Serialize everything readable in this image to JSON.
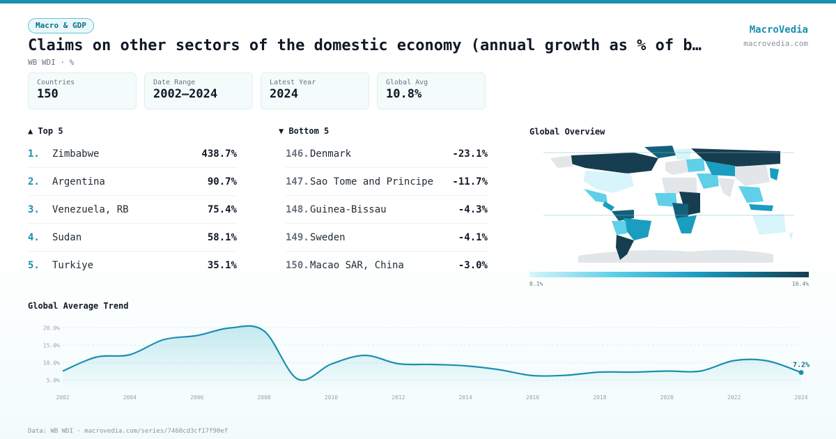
{
  "header": {
    "badge": "Macro & GDP",
    "title": "Claims on other sectors of the domestic economy (annual growth as % of b…",
    "subtitle": "WB WDI · %",
    "brand_name": "MacroVedia",
    "brand_url": "macrovedia.com"
  },
  "stats": [
    {
      "label": "Countries",
      "value": "150"
    },
    {
      "label": "Date Range",
      "value": "2002–2024"
    },
    {
      "label": "Latest Year",
      "value": "2024"
    },
    {
      "label": "Global Avg",
      "value": "10.8%"
    }
  ],
  "top5": {
    "heading": "▲ Top 5",
    "items": [
      {
        "rank": "1.",
        "name": "Zimbabwe",
        "value": "438.7%"
      },
      {
        "rank": "2.",
        "name": "Argentina",
        "value": "90.7%"
      },
      {
        "rank": "3.",
        "name": "Venezuela, RB",
        "value": "75.4%"
      },
      {
        "rank": "4.",
        "name": "Sudan",
        "value": "58.1%"
      },
      {
        "rank": "5.",
        "name": "Turkiye",
        "value": "35.1%"
      }
    ]
  },
  "bottom5": {
    "heading": "▼ Bottom 5",
    "items": [
      {
        "rank": "146.",
        "name": "Denmark",
        "value": "-23.1%"
      },
      {
        "rank": "147.",
        "name": "Sao Tome and Principe",
        "value": "-11.7%"
      },
      {
        "rank": "148.",
        "name": "Guinea-Bissau",
        "value": "-4.3%"
      },
      {
        "rank": "149.",
        "name": "Sweden",
        "value": "-4.1%"
      },
      {
        "rank": "150.",
        "name": "Macao SAR, China",
        "value": "-3.0%"
      }
    ]
  },
  "map": {
    "heading": "Global Overview",
    "scale_min": "0.1%",
    "scale_max": "16.4%",
    "colors": {
      "low": "#d7f5fb",
      "mid": "#1a9dc0",
      "high": "#163e50",
      "nodata": "#e3e6e9"
    }
  },
  "trend": {
    "heading": "Global Average Trend",
    "last_label": "7.2%"
  },
  "chart_data": {
    "type": "area",
    "x": [
      2002,
      2003,
      2004,
      2005,
      2006,
      2007,
      2008,
      2009,
      2010,
      2011,
      2012,
      2013,
      2014,
      2015,
      2016,
      2017,
      2018,
      2019,
      2020,
      2021,
      2022,
      2023,
      2024
    ],
    "values": [
      7.6,
      11.6,
      12.3,
      16.6,
      17.8,
      20.0,
      19.1,
      5.3,
      9.6,
      12.1,
      9.7,
      9.5,
      9.1,
      8.0,
      6.3,
      6.4,
      7.3,
      7.3,
      7.6,
      7.6,
      10.6,
      10.5,
      7.2
    ],
    "title": "Global Average Trend",
    "yticks": [
      "5.0%",
      "10.0%",
      "15.0%",
      "20.0%"
    ],
    "ytick_values": [
      5,
      10,
      15,
      20
    ],
    "xticks": [
      "2002",
      "2004",
      "2006",
      "2008",
      "2010",
      "2012",
      "2014",
      "2016",
      "2018",
      "2020",
      "2022",
      "2024"
    ],
    "ylim": [
      3.5,
      21.5
    ],
    "grid": true,
    "color": "#1a8fb0"
  },
  "footer": "Data: WB WDI · macrovedia.com/series/7460cd3cf17f90ef"
}
